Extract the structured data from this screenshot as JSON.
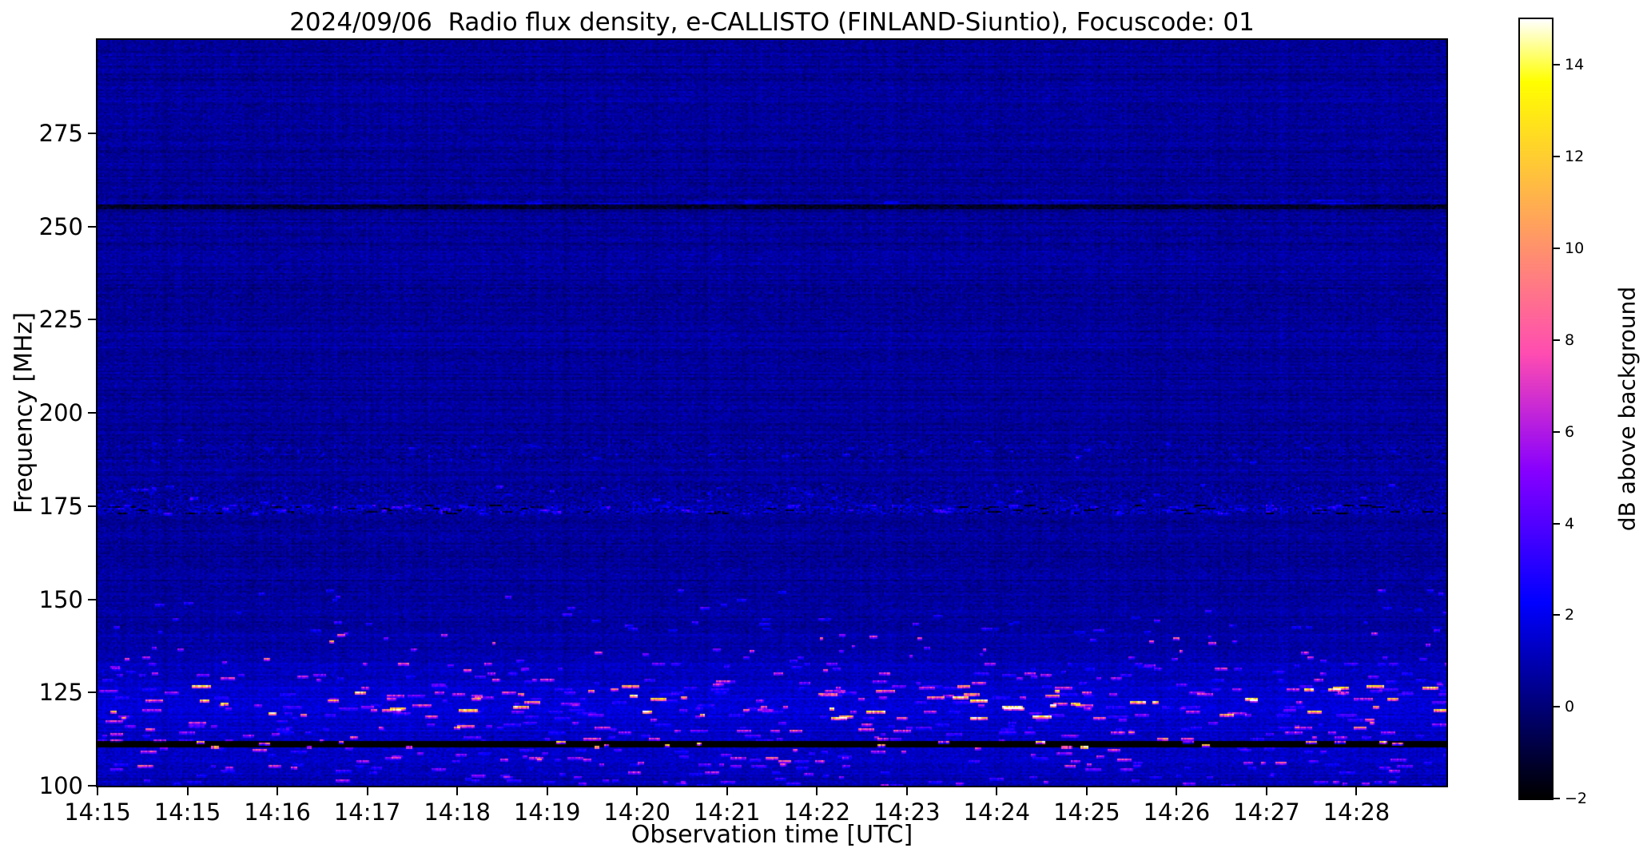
{
  "chart_data": {
    "type": "heatmap",
    "title": "2024/09/06  Radio flux density, e-CALLISTO (FINLAND-Siuntio), Focuscode: 01",
    "xlabel": "Observation time [UTC]",
    "ylabel": "Frequency [MHz]",
    "x_tick_labels": [
      "14:15",
      "14:15",
      "14:16",
      "14:17",
      "14:18",
      "14:19",
      "14:20",
      "14:21",
      "14:22",
      "14:23",
      "14:24",
      "14:25",
      "14:26",
      "14:27",
      "14:28"
    ],
    "y_tick_values": [
      100,
      125,
      150,
      175,
      200,
      225,
      250,
      275
    ],
    "ylim": [
      100,
      300
    ],
    "grid": false,
    "legend": "none",
    "colormap": "gnuplot2",
    "colorbar": {
      "label": "dB above background",
      "vmin": -2,
      "vmax": 15,
      "ticks": [
        {
          "v": -2,
          "label": "−2"
        },
        {
          "v": 0,
          "label": "0"
        },
        {
          "v": 2,
          "label": "2"
        },
        {
          "v": 4,
          "label": "4"
        },
        {
          "v": 6,
          "label": "6"
        },
        {
          "v": 8,
          "label": "8"
        },
        {
          "v": 10,
          "label": "10"
        },
        {
          "v": 12,
          "label": "12"
        },
        {
          "v": 14,
          "label": "14"
        }
      ]
    },
    "description": "Solar radio spectrogram: dark blue noise background ~0.5 dB, busy RFI bands below 150 MHz with bright bursts up to 15 dB, black interference line near 111 MHz, sparse satellite dots 133-141 MHz, speckled interference row near 174 MHz, faint dotted rows 176-193 MHz, dark horizontal line near 255 MHz with slight bright fringe above.",
    "noise": {
      "seed": 90624,
      "base": 0.55,
      "sigma": 0.55,
      "row_sigma": 0.16,
      "col_sigma": 0.1,
      "stripe_prob": 0.07,
      "stripe_amp": 0.7
    },
    "bands": [
      {
        "f": [
          100,
          103.5
        ],
        "o": 0.5,
        "p": 0.005,
        "l": [
          2,
          8
        ],
        "a": [
          1.5,
          5
        ]
      },
      {
        "f": [
          103.5,
          110.2
        ],
        "o": 0.7,
        "p": 0.007,
        "l": [
          2,
          9
        ],
        "a": [
          1.5,
          7
        ]
      },
      {
        "f": [
          110.2,
          112.2
        ],
        "o": -3.6,
        "p": 0.004,
        "l": [
          2,
          6
        ],
        "a": [
          8,
          18
        ],
        "t": 1.3
      },
      {
        "f": [
          112.2,
          118
        ],
        "o": 0.8,
        "p": 0.009,
        "l": [
          2,
          10
        ],
        "a": [
          1.5,
          8
        ]
      },
      {
        "f": [
          118,
          127.5
        ],
        "o": 0.9,
        "p": 0.012,
        "l": [
          2,
          12
        ],
        "a": [
          1.5,
          14
        ],
        "t": 2.3
      },
      {
        "f": [
          127.5,
          133
        ],
        "o": 0.6,
        "p": 0.007,
        "l": [
          2,
          8
        ],
        "a": [
          1.5,
          7
        ]
      },
      {
        "f": [
          133,
          141
        ],
        "o": 0.25,
        "p": 0.003,
        "l": [
          1,
          4
        ],
        "a": [
          3,
          9
        ],
        "t": 1.5
      },
      {
        "f": [
          141,
          148
        ],
        "o": 0.15,
        "p": 0.0025,
        "l": [
          2,
          6
        ],
        "a": [
          1.5,
          4
        ]
      },
      {
        "f": [
          148,
          153
        ],
        "o": 0.05,
        "p": 0.0012,
        "l": [
          2,
          5
        ],
        "a": [
          2,
          4.5
        ]
      },
      {
        "f": [
          153,
          172.4
        ],
        "s": 0.15
      },
      {
        "f": [
          172.8,
          175.2
        ],
        "o": 0.25,
        "s": 0.85,
        "p": 0.014,
        "l": [
          2,
          7
        ],
        "a": [
          1.2,
          3
        ],
        "dp": 0.014,
        "da": -2.6
      },
      {
        "f": [
          176,
          181
        ],
        "s": 0.5,
        "p": 0.004,
        "l": [
          1,
          4
        ],
        "a": [
          1,
          2.5
        ]
      },
      {
        "f": [
          186.5,
          193
        ],
        "s": 0.38,
        "p": 0.003,
        "l": [
          1,
          4
        ],
        "a": [
          0.8,
          2
        ]
      },
      {
        "f": [
          231,
          233.5
        ],
        "o": -0.15,
        "s": 0.22
      },
      {
        "f": [
          253.8,
          254.8
        ],
        "o": -0.45
      },
      {
        "f": [
          254.8,
          255.9
        ],
        "o": -1.75,
        "s": 0.3
      },
      {
        "f": [
          255.9,
          257.3
        ],
        "o": 0.25,
        "p": 0.01,
        "l": [
          8,
          26
        ],
        "a": [
          0.5,
          1.3
        ]
      }
    ]
  }
}
